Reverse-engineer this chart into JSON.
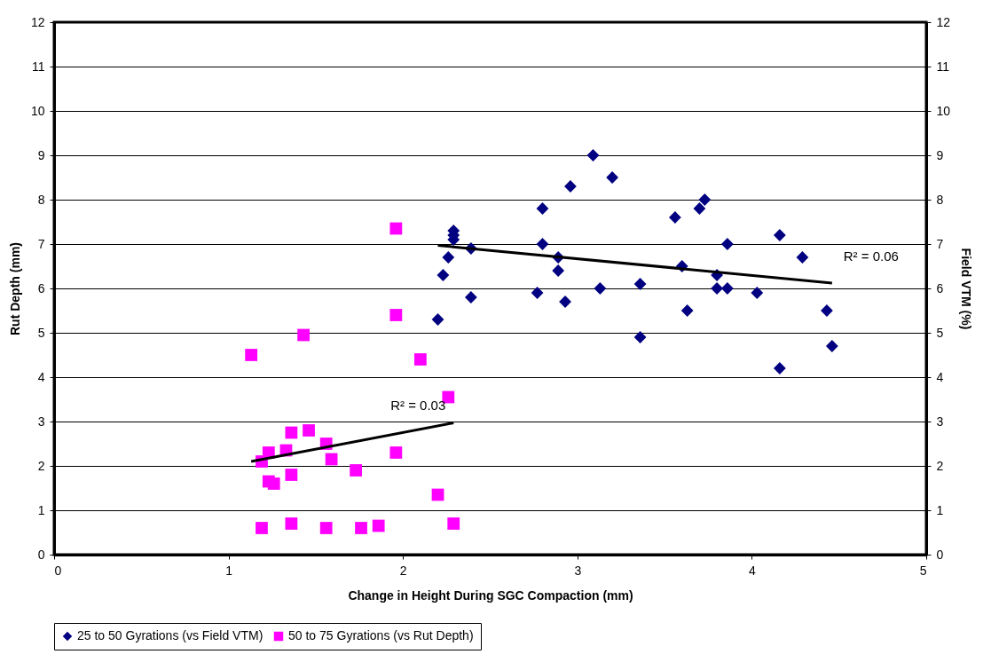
{
  "chart_data": {
    "type": "scatter",
    "xlabel": "Change in Height During SGC Compaction (mm)",
    "ylabel": "Rut Depth (mm)",
    "y2label": "Field VTM (%)",
    "xlim": [
      0,
      5
    ],
    "xticks": [
      0,
      1,
      2,
      3,
      4,
      5
    ],
    "ylim": [
      0,
      12
    ],
    "yticks": [
      0,
      1,
      2,
      3,
      4,
      5,
      6,
      7,
      8,
      9,
      10,
      11,
      12
    ],
    "y2lim": [
      0,
      12
    ],
    "y2ticks": [
      0,
      1,
      2,
      3,
      4,
      5,
      6,
      7,
      8,
      9,
      10,
      11,
      12
    ],
    "grid": "y",
    "legend": "bottom",
    "series": [
      {
        "name": "25 to 50 Gyrations (vs Field VTM)",
        "color": "#000080",
        "marker": "diamond",
        "axis": "y2",
        "x": [
          2.2,
          2.23,
          2.26,
          2.29,
          2.29,
          2.29,
          2.39,
          2.39,
          2.77,
          2.8,
          2.8,
          2.89,
          2.89,
          2.93,
          2.96,
          3.09,
          3.13,
          3.2,
          3.36,
          3.36,
          3.56,
          3.6,
          3.63,
          3.7,
          3.73,
          3.8,
          3.8,
          3.86,
          3.86,
          4.03,
          4.16,
          4.16,
          4.29,
          4.43,
          4.46
        ],
        "values": [
          5.3,
          6.3,
          6.7,
          7.1,
          7.2,
          7.3,
          5.8,
          6.9,
          5.9,
          7.8,
          7.0,
          6.7,
          6.4,
          5.7,
          8.3,
          9.0,
          6.0,
          8.5,
          6.1,
          4.9,
          7.6,
          6.5,
          5.5,
          7.8,
          8.0,
          6.3,
          6.0,
          6.0,
          7.0,
          5.9,
          7.2,
          4.2,
          6.7,
          5.5,
          4.7
        ]
      },
      {
        "name": "50 to 75 Gyrations (vs Rut Depth)",
        "color": "#ff00ff",
        "marker": "square",
        "x": [
          1.13,
          1.43,
          1.96,
          1.96,
          2.1,
          2.26,
          1.19,
          1.23,
          1.23,
          1.26,
          1.33,
          1.36,
          1.36,
          1.46,
          1.56,
          1.59,
          1.73,
          1.96,
          2.2,
          1.19,
          1.36,
          1.56,
          1.76,
          1.86,
          2.29
        ],
        "values": [
          4.5,
          4.95,
          7.35,
          5.4,
          4.4,
          3.55,
          2.1,
          2.3,
          1.65,
          1.6,
          2.35,
          2.75,
          1.8,
          2.8,
          2.5,
          2.15,
          1.9,
          2.3,
          1.35,
          0.6,
          0.7,
          0.6,
          0.6,
          0.65,
          0.7
        ]
      },
      {
        "type": "line",
        "color": "#000000",
        "marker": "none",
        "line_style": "solid",
        "x": [
          1.13,
          2.29
        ],
        "values": [
          2.1,
          2.97
        ]
      },
      {
        "type": "line",
        "color": "#000000",
        "marker": "none",
        "line_style": "solid",
        "axis": "y2",
        "x": [
          2.2,
          4.46
        ],
        "values": [
          6.97,
          6.12
        ]
      }
    ],
    "annotations": [
      "R² = 0.03",
      "R² = 0.06"
    ]
  }
}
